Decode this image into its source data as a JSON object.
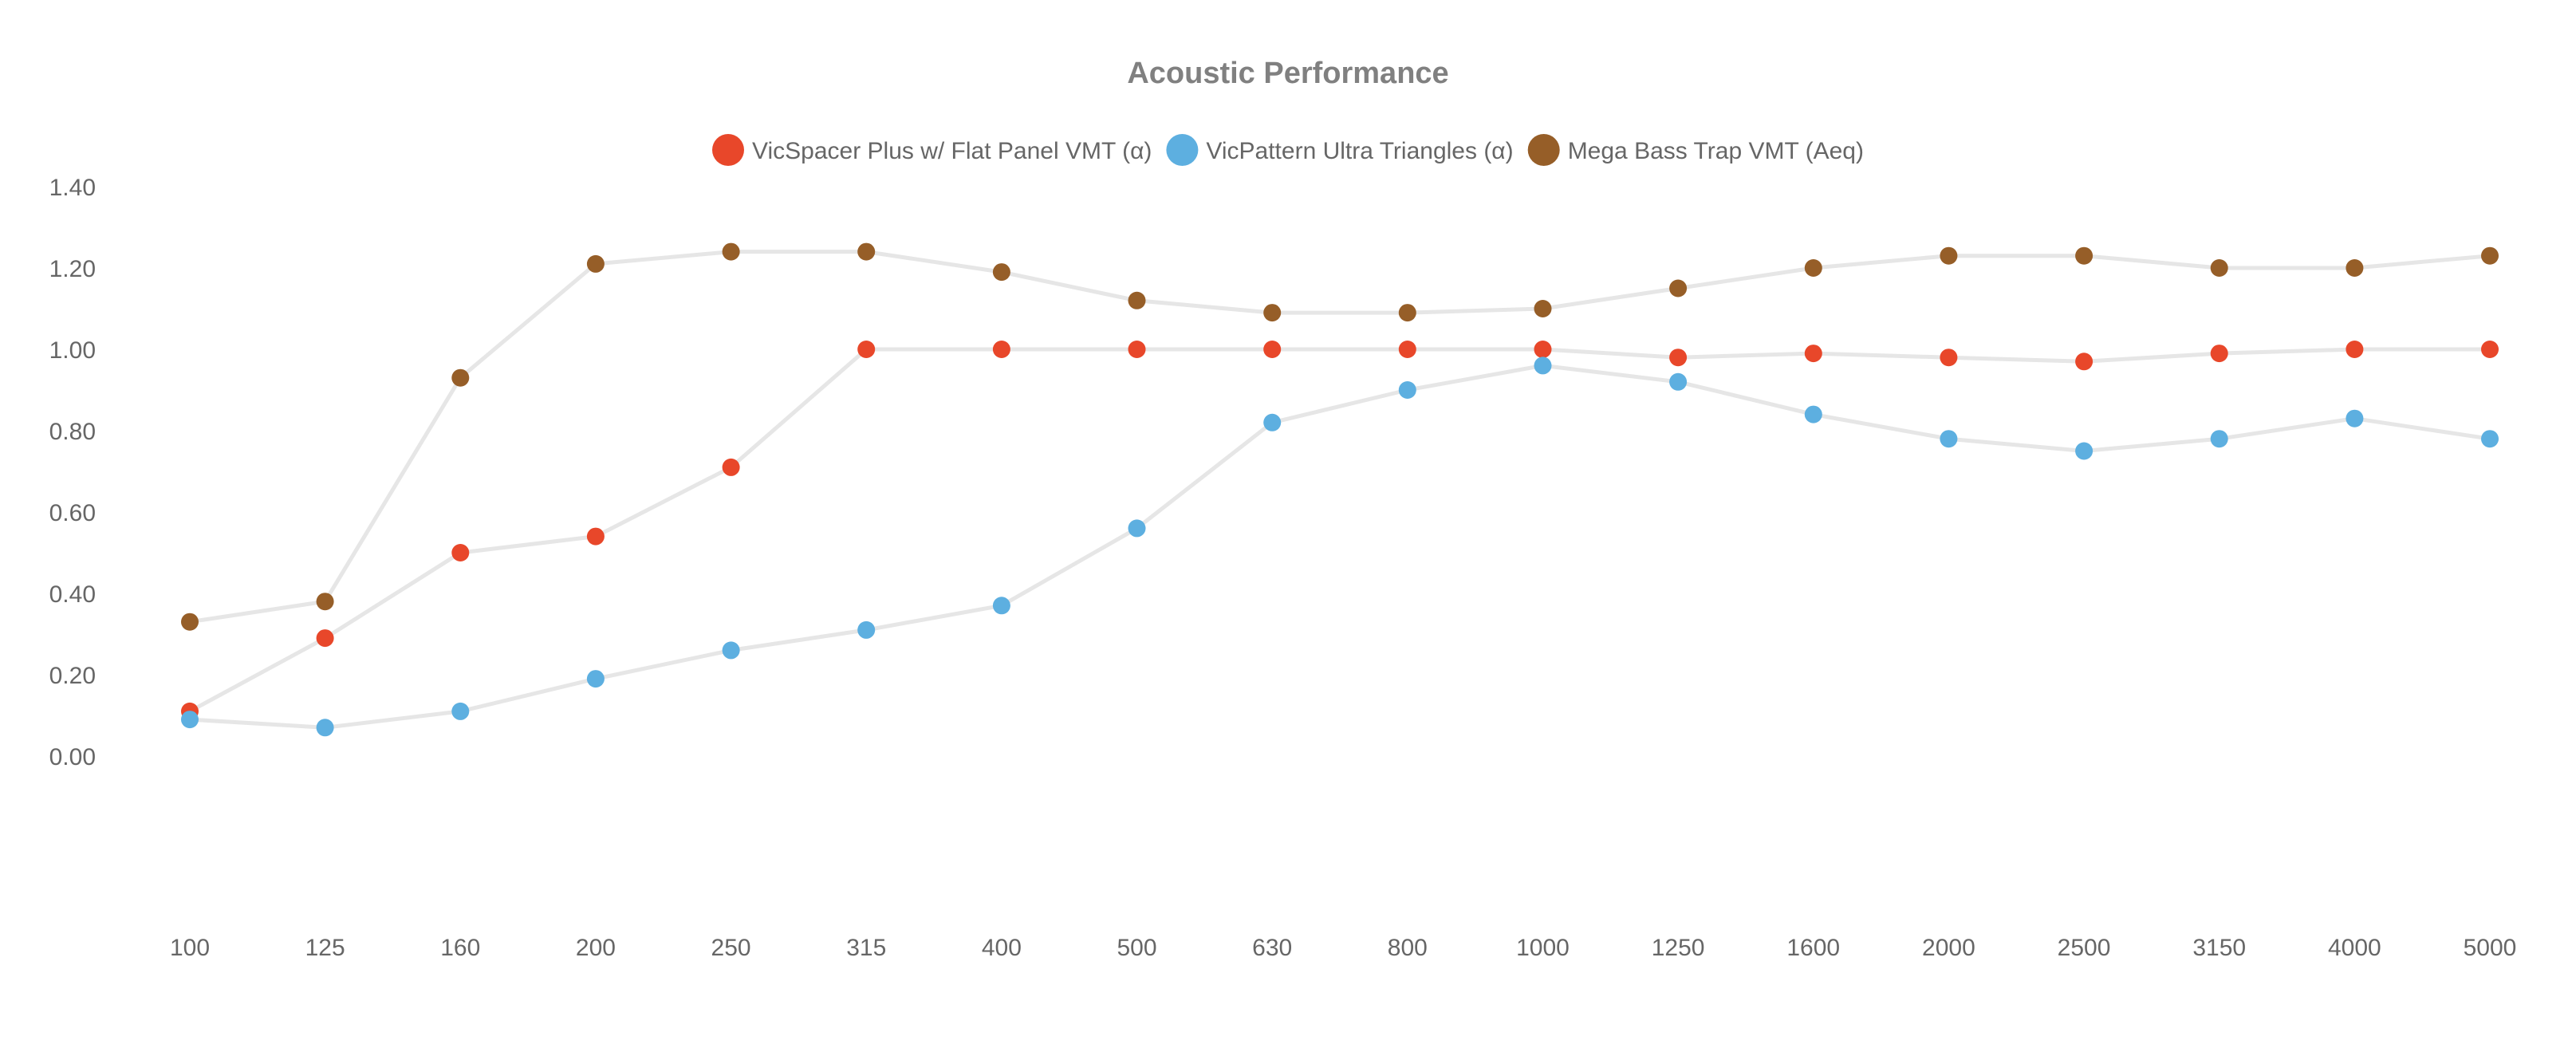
{
  "chart_data": {
    "type": "line",
    "title": "Acoustic Performance",
    "xlabel": "",
    "ylabel": "",
    "categories": [
      "100",
      "125",
      "160",
      "200",
      "250",
      "315",
      "400",
      "500",
      "630",
      "800",
      "1000",
      "1250",
      "1600",
      "2000",
      "2500",
      "3150",
      "4000",
      "5000"
    ],
    "ylim": [
      -0.2,
      1.4
    ],
    "yticks": [
      "1.40",
      "1.20",
      "1.00",
      "0.80",
      "0.60",
      "0.40",
      "0.20",
      "0.00"
    ],
    "grid": false,
    "legend_position": "top-center",
    "line_color": "#e6e6e6",
    "series": [
      {
        "name": "VicSpacer Plus w/ Flat Panel VMT (α)",
        "color": "#e8472a",
        "values": [
          0.11,
          0.29,
          0.5,
          0.54,
          0.71,
          1.0,
          1.0,
          1.0,
          1.0,
          1.0,
          1.0,
          0.98,
          0.99,
          0.98,
          0.97,
          0.99,
          1.0,
          1.0
        ]
      },
      {
        "name": "VicPattern Ultra Triangles (α)",
        "color": "#5dafe0",
        "values": [
          0.09,
          0.07,
          0.11,
          0.19,
          0.26,
          0.31,
          0.37,
          0.56,
          0.82,
          0.9,
          0.96,
          0.92,
          0.84,
          0.78,
          0.75,
          0.78,
          0.83,
          0.78
        ]
      },
      {
        "name": "Mega Bass Trap VMT (Aeq)",
        "color": "#965e28",
        "values": [
          0.33,
          0.38,
          0.93,
          1.21,
          1.24,
          1.24,
          1.19,
          1.12,
          1.09,
          1.09,
          1.1,
          1.15,
          1.2,
          1.23,
          1.23,
          1.2,
          1.2,
          1.23
        ]
      }
    ]
  }
}
